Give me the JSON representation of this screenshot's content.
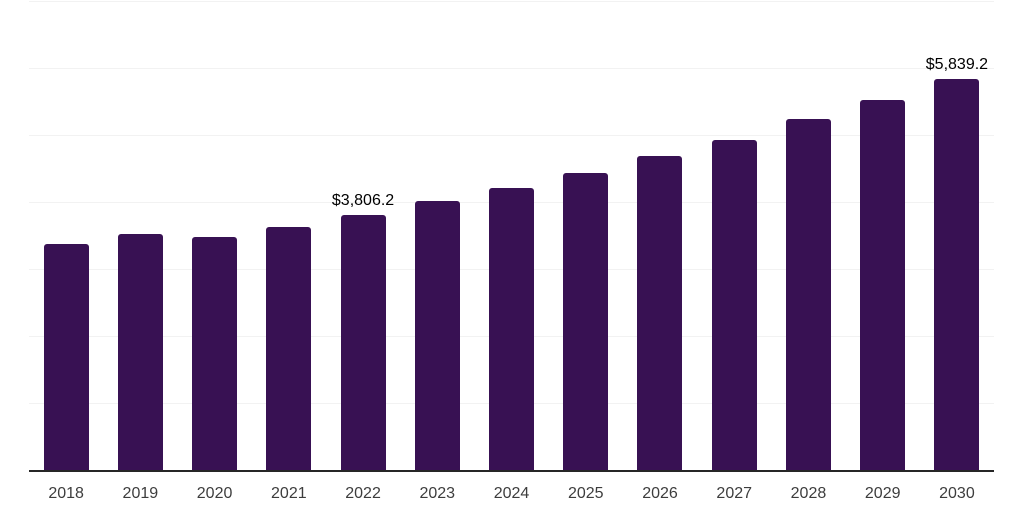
{
  "chart_data": {
    "type": "bar",
    "title": "",
    "xlabel": "",
    "ylabel": "",
    "categories": [
      "2018",
      "2019",
      "2020",
      "2021",
      "2022",
      "2023",
      "2024",
      "2025",
      "2026",
      "2027",
      "2028",
      "2029",
      "2030"
    ],
    "values": [
      3370,
      3520,
      3480,
      3630,
      3806.2,
      4010,
      4210,
      4440,
      4690,
      4930,
      5240,
      5530,
      5839.2
    ],
    "labeled_points": [
      {
        "category": "2022",
        "label": "$3,806.2"
      },
      {
        "category": "2030",
        "label": "$5,839.2"
      }
    ],
    "ylim": [
      0,
      7000
    ],
    "gridline_values": [
      1000,
      2000,
      3000,
      4000,
      5000,
      6000,
      7000
    ],
    "grid": "horizontal",
    "legend": "none",
    "y_axis_ticks_visible": false
  },
  "colors": {
    "bar": "#381153",
    "axis": "#262626",
    "gridline": "#f2f2f2",
    "tick_label": "#3d3d3d",
    "data_label": "#000000",
    "background": "#ffffff"
  }
}
